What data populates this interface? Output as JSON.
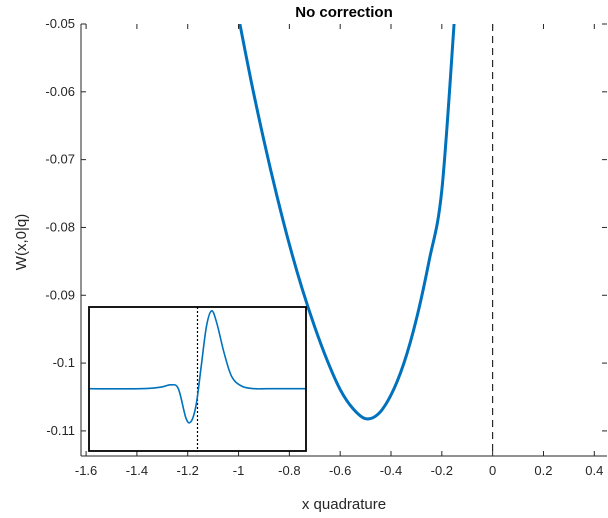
{
  "chart_data": {
    "type": "line",
    "title": "No correction",
    "xlabel": "x quadrature",
    "ylabel": "W(x,0|q)",
    "xlim": [
      -1.62,
      0.45
    ],
    "ylim": [
      -0.1137,
      -0.05
    ],
    "xticks": [
      -1.6,
      -1.4,
      -1.2,
      -1,
      -0.8,
      -0.6,
      -0.4,
      -0.2,
      0,
      0.2,
      0.4
    ],
    "xtick_labels": [
      "-1.6",
      "-1.4",
      "-1.2",
      "-1",
      "-0.8",
      "-0.6",
      "-0.4",
      "-0.2",
      "0",
      "0.2",
      "0.4"
    ],
    "yticks": [
      -0.11,
      -0.1,
      -0.09,
      -0.08,
      -0.07,
      -0.06,
      -0.05
    ],
    "ytick_labels": [
      "-0.11",
      "-0.1",
      "-0.09",
      "-0.08",
      "-0.07",
      "-0.06",
      "-0.05"
    ],
    "grid": false,
    "line_color": "#0072BD",
    "series": [
      {
        "x": [
          -1.0,
          -0.95,
          -0.9,
          -0.85,
          -0.8,
          -0.75,
          -0.7,
          -0.65,
          -0.6,
          -0.55,
          -0.5,
          -0.45,
          -0.4,
          -0.35,
          -0.3,
          -0.25,
          -0.2,
          -0.15
        ],
        "y": [
          -0.049,
          -0.0585,
          -0.0672,
          -0.0752,
          -0.0825,
          -0.089,
          -0.0947,
          -0.0997,
          -0.1039,
          -0.1067,
          -0.1082,
          -0.1075,
          -0.1047,
          -0.1001,
          -0.0935,
          -0.0849,
          -0.0745,
          -0.049
        ]
      }
    ],
    "reference_line": {
      "x": 0,
      "style": "dashed",
      "color": "#000000"
    },
    "inset": {
      "reference_line": {
        "x": -1.175,
        "style": "dotted",
        "color": "#000000"
      },
      "xlim": [
        -1.6,
        -0.75
      ],
      "ylim": [
        -0.8,
        1.05
      ],
      "series": [
        {
          "x": [
            -1.6,
            -1.4,
            -1.32,
            -1.28,
            -1.25,
            -1.22,
            -1.2,
            -1.18,
            -1.16,
            -1.14,
            -1.12,
            -1.1,
            -1.07,
            -1.04,
            -1.0,
            -0.95,
            -0.9,
            -0.75
          ],
          "y": [
            0.0,
            0.0,
            0.02,
            0.05,
            0.0,
            -0.38,
            -0.42,
            -0.2,
            0.3,
            0.8,
            1.0,
            0.85,
            0.45,
            0.15,
            0.03,
            0.0,
            0.0,
            0.0
          ]
        }
      ]
    }
  }
}
